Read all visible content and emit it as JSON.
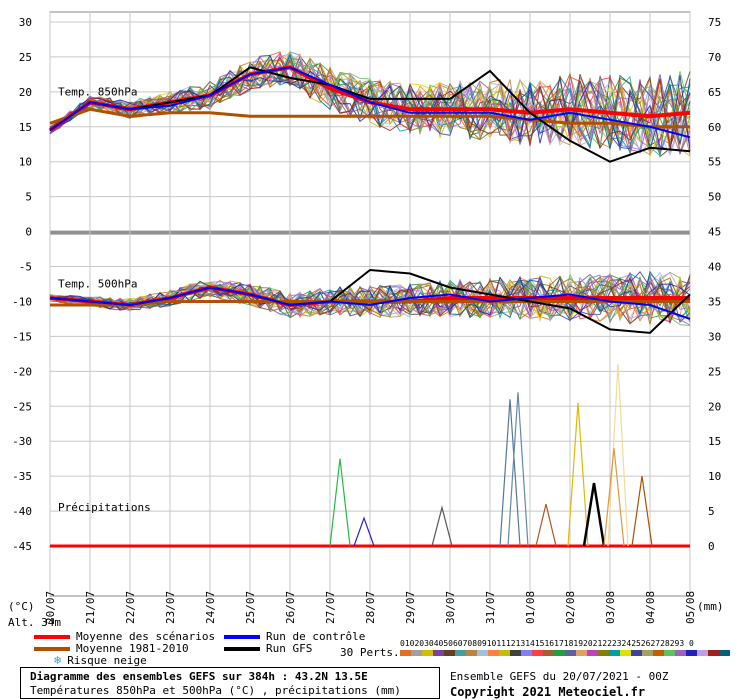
{
  "chart_data": {
    "type": "line",
    "title": "Diagramme des ensembles GEFS sur 384h : 43.2N 13.5E",
    "subtitle": "Températures 850hPa et 500hPa (°C) , précipitations (mm)",
    "left_axis_unit": "(°C)",
    "right_axis_unit": "(mm)",
    "altitude": "Alt. 34m",
    "x_dates": [
      "20/07",
      "21/07",
      "22/07",
      "23/07",
      "24/07",
      "25/07",
      "26/07",
      "27/07",
      "28/07",
      "29/07",
      "30/07",
      "31/07",
      "01/08",
      "02/08",
      "03/08",
      "04/08",
      "05/08"
    ],
    "y_left_ticks": [
      30,
      25,
      20,
      15,
      10,
      5,
      0,
      -5,
      -10,
      -15,
      -20,
      -25,
      -30,
      -35,
      -40,
      -45
    ],
    "y_right_ticks": [
      75,
      70,
      65,
      60,
      55,
      50,
      45,
      40,
      35,
      30,
      25,
      20,
      15,
      10,
      5,
      0
    ],
    "panel_labels": [
      "Temp. 850hPa",
      "Temp. 500hPa",
      "Précipitations"
    ],
    "series": [
      {
        "name": "Moyenne des scénarios",
        "panel": "850",
        "color": "#ff0000",
        "values": [
          14.5,
          18.5,
          17.5,
          18.5,
          19.5,
          22.5,
          23.5,
          20.5,
          18.5,
          17.5,
          17.5,
          17.5,
          17,
          17.5,
          17,
          16.5,
          17
        ]
      },
      {
        "name": "Moyenne 1981-2010",
        "panel": "850",
        "color": "#b05000",
        "values": [
          15.5,
          17.5,
          16.5,
          17,
          17,
          16.5,
          16.5,
          16.5,
          16.5,
          16.5,
          16.5,
          16.5,
          16,
          15.5,
          15.5,
          15,
          15
        ]
      },
      {
        "name": "Run GFS",
        "panel": "850",
        "color": "#000000",
        "values": [
          14.5,
          18.5,
          17.5,
          18.5,
          19.5,
          23.5,
          22,
          21,
          19,
          19,
          19,
          23,
          17,
          13,
          10,
          12,
          11.5
        ]
      },
      {
        "name": "Run de contrôle",
        "panel": "850",
        "color": "#0000ff",
        "values": [
          14.5,
          18.5,
          17.5,
          18,
          19.5,
          22.5,
          23.5,
          21,
          18.5,
          17,
          17,
          17,
          16,
          17,
          16,
          15,
          13.5
        ]
      },
      {
        "name": "Moyenne des scénarios",
        "panel": "500",
        "color": "#ff0000",
        "values": [
          -9.5,
          -10,
          -10.5,
          -9.5,
          -8,
          -9,
          -10.5,
          -10,
          -10,
          -10,
          -9.5,
          -9.5,
          -9.5,
          -9.5,
          -9.5,
          -9.5,
          -9.5
        ]
      },
      {
        "name": "Moyenne 1981-2010",
        "panel": "500",
        "color": "#b05000",
        "values": [
          -10.5,
          -10.5,
          -10.5,
          -10,
          -10,
          -10,
          -10,
          -10,
          -10,
          -10,
          -10,
          -10,
          -10,
          -10,
          -10,
          -10,
          -10
        ]
      },
      {
        "name": "Run GFS",
        "panel": "500",
        "color": "#000000",
        "values": [
          -9.5,
          -10,
          -10.5,
          -9.5,
          -8,
          -9,
          -10.5,
          -10,
          -5.5,
          -6,
          -8,
          -9,
          -10,
          -11,
          -14,
          -14.5,
          -9
        ]
      },
      {
        "name": "Run de contrôle",
        "panel": "500",
        "color": "#0000ff",
        "values": [
          -9.5,
          -10,
          -10.5,
          -9.5,
          -8,
          -9,
          -10.5,
          -10,
          -10.5,
          -9.5,
          -9,
          -10,
          -9.5,
          -9,
          -10,
          -10.5,
          -12.5
        ]
      }
    ],
    "precip_peaks_mm": [
      {
        "day": 7.25,
        "mm": 12.5,
        "color": "#22bb44"
      },
      {
        "day": 7.85,
        "mm": 4,
        "color": "#2222cc"
      },
      {
        "day": 9.8,
        "mm": 5.5,
        "color": "#555555"
      },
      {
        "day": 11.5,
        "mm": 21,
        "color": "#557799"
      },
      {
        "day": 11.7,
        "mm": 22,
        "color": "#6688aa"
      },
      {
        "day": 13.2,
        "mm": 20.5,
        "color": "#ddbb00"
      },
      {
        "day": 13.6,
        "mm": 9,
        "color": "#000000"
      },
      {
        "day": 14.2,
        "mm": 26,
        "color": "#eedd99"
      },
      {
        "day": 14.1,
        "mm": 14,
        "color": "#dd9944"
      },
      {
        "day": 14.8,
        "mm": 10,
        "color": "#b05000"
      },
      {
        "day": 12.4,
        "mm": 6,
        "color": "#aa5522"
      }
    ],
    "grid": true
  },
  "legend": {
    "items": [
      {
        "label": "Moyenne des scénarios",
        "color": "#ff0000"
      },
      {
        "label": "Moyenne 1981-2010",
        "color": "#b05000"
      },
      {
        "label": "Run de contrôle",
        "color": "#0000ff"
      },
      {
        "label": "Run GFS",
        "color": "#000000"
      }
    ],
    "snow_label": "Risque neige",
    "pert_label": "30 Perts.",
    "pert_numbers": "01020304050607080910111213141516171819202122232425262728293 0",
    "pert_colors": [
      "#e07020",
      "#a0a0a0",
      "#d0c000",
      "#8040a0",
      "#604020",
      "#40a0a0",
      "#c08040",
      "#a0c0e0",
      "#ff8040",
      "#c0c000",
      "#404040",
      "#8080ff",
      "#ff4040",
      "#a06030",
      "#20a040",
      "#6060a0",
      "#e0a060",
      "#c040c0",
      "#808000",
      "#00a0a0",
      "#e0e000",
      "#4040a0",
      "#a0a060",
      "#c06000",
      "#60c060",
      "#a060c0",
      "#2020c0",
      "#c0a0e0",
      "#a02020",
      "#006080"
    ]
  },
  "footer": {
    "ensemble_info": "Ensemble GEFS du 20/07/2021 - 00Z",
    "copyright": "Copyright 2021 Meteociel.fr"
  }
}
